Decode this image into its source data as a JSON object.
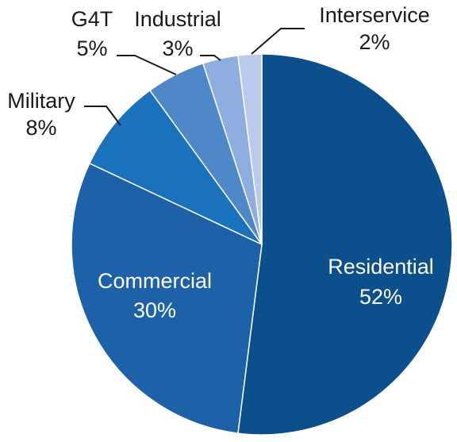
{
  "chart_data": {
    "type": "pie",
    "start_angle_deg": 0,
    "direction": "clockwise",
    "slices": [
      {
        "label": "Residential",
        "value": 52,
        "value_label": "52%",
        "color": "#0b4f8c"
      },
      {
        "label": "Commercial",
        "value": 30,
        "value_label": "30%",
        "color": "#1d61a8"
      },
      {
        "label": "Military",
        "value": 8,
        "value_label": "8%",
        "color": "#1a72bd"
      },
      {
        "label": "G4T",
        "value": 5,
        "value_label": "5%",
        "color": "#4f88c8"
      },
      {
        "label": "Industrial",
        "value": 3,
        "value_label": "3%",
        "color": "#8eaee0"
      },
      {
        "label": "Interservice",
        "value": 2,
        "value_label": "2%",
        "color": "#b9caec"
      }
    ]
  }
}
